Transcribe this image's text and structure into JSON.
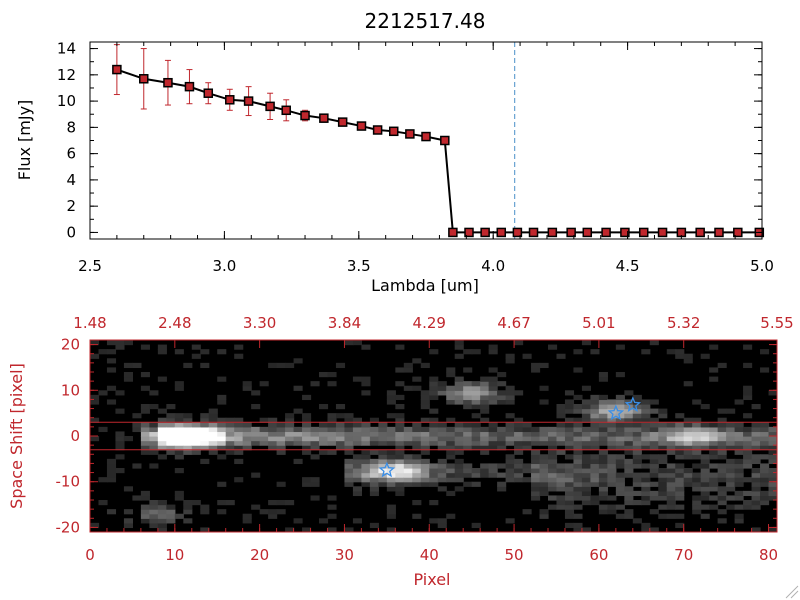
{
  "chart_data": [
    {
      "type": "line",
      "title": "2212517.48",
      "xlabel": "Lambda [um]",
      "ylabel": "Flux [mJy]",
      "xlim": [
        2.5,
        5.0
      ],
      "ylim": [
        -0.5,
        14.5
      ],
      "xticks": [
        "2.5",
        "3.0",
        "3.5",
        "4.0",
        "4.5",
        "5.0"
      ],
      "yticks": [
        "0",
        "2",
        "4",
        "6",
        "8",
        "10",
        "12",
        "14"
      ],
      "reference_line_x": 4.08,
      "series": [
        {
          "x": [
            2.6,
            2.7,
            2.79,
            2.87,
            2.94,
            3.02,
            3.09,
            3.17,
            3.23,
            3.3,
            3.37,
            3.44,
            3.51,
            3.57,
            3.63,
            3.69,
            3.75,
            3.82,
            3.85,
            3.91,
            3.97,
            4.03,
            4.09,
            4.15,
            4.22,
            4.29,
            4.35,
            4.42,
            4.49,
            4.56,
            4.63,
            4.7,
            4.77,
            4.84,
            4.91,
            4.99
          ],
          "y": [
            12.4,
            11.7,
            11.4,
            11.1,
            10.6,
            10.1,
            10.0,
            9.6,
            9.3,
            8.9,
            8.7,
            8.4,
            8.1,
            7.8,
            7.7,
            7.5,
            7.3,
            7.0,
            0,
            0,
            0,
            0,
            0,
            0,
            0,
            0,
            0,
            0,
            0,
            0,
            0,
            0,
            0,
            0,
            0,
            0
          ],
          "yerr": [
            1.9,
            2.3,
            1.7,
            1.3,
            0.8,
            0.8,
            1.1,
            1.0,
            0.8,
            0.4,
            0.3,
            0.3,
            0.2,
            0.2,
            0.2,
            0.2,
            0.2,
            0.2,
            0,
            0,
            0,
            0,
            0,
            0,
            0,
            0,
            0,
            0,
            0,
            0,
            0,
            0,
            0,
            0,
            0,
            0
          ]
        }
      ],
      "colors": {
        "line": "#000000",
        "marker": "#c0272d",
        "errorbar": "#c0272d",
        "reference_line": "#4a90c8"
      }
    },
    {
      "type": "heatmap",
      "xlabel": "Pixel",
      "ylabel": "Space Shift [pixel]",
      "xlim": [
        0,
        81
      ],
      "ylim": [
        -21,
        21
      ],
      "xticks": [
        "0",
        "10",
        "20",
        "30",
        "40",
        "50",
        "60",
        "70",
        "80"
      ],
      "yticks": [
        "-20",
        "-10",
        "0",
        "10",
        "20"
      ],
      "top_axis_ticks": [
        {
          "pixel": 0,
          "label": "1.48"
        },
        {
          "pixel": 10,
          "label": "2.48"
        },
        {
          "pixel": 20,
          "label": "3.30"
        },
        {
          "pixel": 30,
          "label": "3.84"
        },
        {
          "pixel": 40,
          "label": "4.29"
        },
        {
          "pixel": 50,
          "label": "4.67"
        },
        {
          "pixel": 60,
          "label": "5.01"
        },
        {
          "pixel": 70,
          "label": "5.32"
        },
        {
          "pixel": 81,
          "label": "5.55"
        }
      ],
      "extraction_band_y": [
        -3,
        3
      ],
      "star_markers": [
        {
          "x": 35,
          "y": -7.5
        },
        {
          "x": 62,
          "y": 5
        },
        {
          "x": 64,
          "y": 6.8
        }
      ],
      "sources": [
        {
          "x": 11,
          "y": 0,
          "peak": 1.0
        },
        {
          "x": 45,
          "y": 9.5,
          "peak": 0.55
        },
        {
          "x": 36,
          "y": -7.5,
          "peak": 0.75
        },
        {
          "x": 62,
          "y": 5.5,
          "peak": 0.7
        },
        {
          "x": 71,
          "y": 0,
          "peak": 0.5
        },
        {
          "x": 8,
          "y": -17,
          "peak": 0.3
        }
      ],
      "colors": {
        "axes": "#c0272d",
        "band": "#c0272d",
        "star": "#3a8ee6"
      }
    }
  ]
}
